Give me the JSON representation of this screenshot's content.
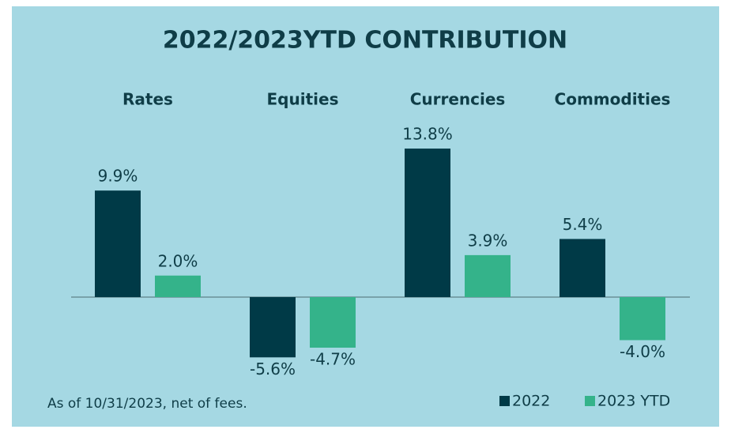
{
  "chart_data": {
    "type": "bar",
    "title": "2022/2023YTD CONTRIBUTION",
    "categories": [
      "Rates",
      "Equities",
      "Currencies",
      "Commodities"
    ],
    "series": [
      {
        "name": "2022",
        "color": "#003a47",
        "values": [
          9.9,
          -5.6,
          13.8,
          5.4
        ],
        "value_labels": [
          "9.9%",
          "-5.6%",
          "13.8%",
          "5.4%"
        ]
      },
      {
        "name": "2023 YTD",
        "color": "#34b38a",
        "values": [
          2.0,
          -4.7,
          3.9,
          -4.0
        ],
        "value_labels": [
          "2.0%",
          "-4.7%",
          "3.9%",
          "-4.0%"
        ]
      }
    ],
    "footnote": "As of 10/31/2023, net of fees.",
    "legend": "bottom-right"
  }
}
